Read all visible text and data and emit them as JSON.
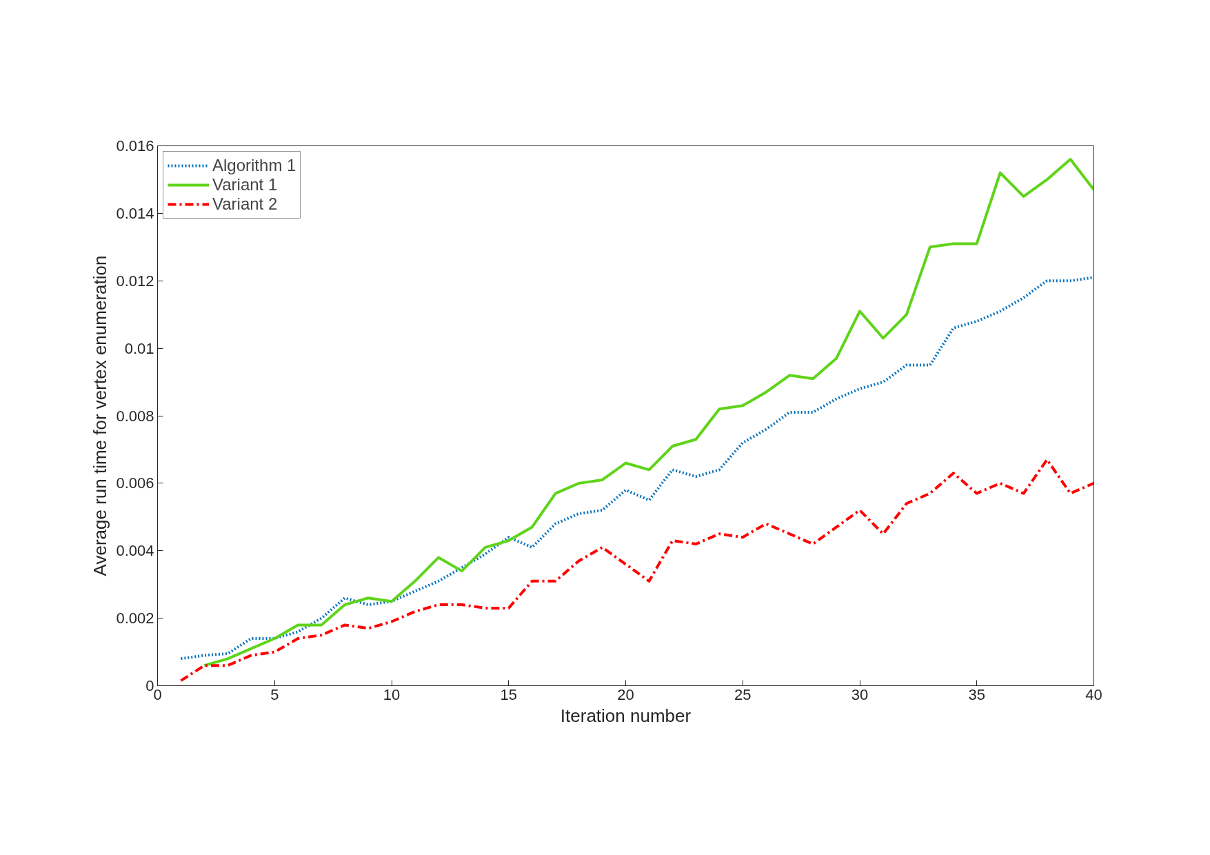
{
  "chart_data": {
    "type": "line",
    "xlabel": "Iteration number",
    "ylabel": "Average run time for vertex enumeration",
    "x": [
      1,
      2,
      3,
      4,
      5,
      6,
      7,
      8,
      9,
      10,
      11,
      12,
      13,
      14,
      15,
      16,
      17,
      18,
      19,
      20,
      21,
      22,
      23,
      24,
      25,
      26,
      27,
      28,
      29,
      30,
      31,
      32,
      33,
      34,
      35,
      36,
      37,
      38,
      39,
      40
    ],
    "series": [
      {
        "name": "Algorithm 1",
        "color": "#0072bd",
        "line_style": "dotted",
        "values": [
          0.0008,
          0.0009,
          0.00095,
          0.0014,
          0.0014,
          0.0016,
          0.002,
          0.0026,
          0.0024,
          0.0025,
          0.0028,
          0.0031,
          0.0035,
          0.0039,
          0.0044,
          0.0041,
          0.0048,
          0.0051,
          0.0052,
          0.0058,
          0.0055,
          0.0064,
          0.0062,
          0.0064,
          0.0072,
          0.0076,
          0.0081,
          0.0081,
          0.0085,
          0.0088,
          0.009,
          0.0095,
          0.0095,
          0.0106,
          0.0108,
          0.0111,
          0.0115,
          0.012,
          0.012,
          0.0121
        ]
      },
      {
        "name": "Variant 1",
        "color": "#5fd41a",
        "line_style": "solid",
        "values": [
          null,
          0.0006,
          0.0008,
          0.0011,
          0.0014,
          0.0018,
          0.0018,
          0.0024,
          0.0026,
          0.0025,
          0.0031,
          0.0038,
          0.0034,
          0.0041,
          0.0043,
          0.0047,
          0.0057,
          0.006,
          0.0061,
          0.0066,
          0.0064,
          0.0071,
          0.0073,
          0.0082,
          0.0083,
          0.0087,
          0.0092,
          0.0091,
          0.0097,
          0.0111,
          0.0103,
          0.011,
          0.013,
          0.0131,
          0.0131,
          0.0152,
          0.0145,
          0.015,
          0.0156,
          0.0147
        ]
      },
      {
        "name": "Variant 2",
        "color": "#ff0000",
        "line_style": "dashdot",
        "values": [
          0.00015,
          0.0006,
          0.0006,
          0.0009,
          0.001,
          0.0014,
          0.0015,
          0.0018,
          0.0017,
          0.0019,
          0.0022,
          0.0024,
          0.0024,
          0.0023,
          0.0023,
          0.0031,
          0.0031,
          0.0037,
          0.0041,
          0.0036,
          0.0031,
          0.0043,
          0.0042,
          0.0045,
          0.0044,
          0.0048,
          0.0045,
          0.0042,
          0.0047,
          0.0052,
          0.0045,
          0.0054,
          0.0057,
          0.0063,
          0.0057,
          0.006,
          0.0057,
          0.0067,
          0.0057,
          0.006
        ]
      }
    ],
    "xlim": [
      0,
      40
    ],
    "xticks": [
      0,
      5,
      10,
      15,
      20,
      25,
      30,
      35,
      40
    ],
    "ylim": [
      0,
      0.016
    ],
    "yticks": [
      0,
      0.002,
      0.004,
      0.006,
      0.008,
      0.01,
      0.012,
      0.014,
      0.016
    ],
    "grid": false,
    "legend": "top left",
    "marker": "none"
  }
}
